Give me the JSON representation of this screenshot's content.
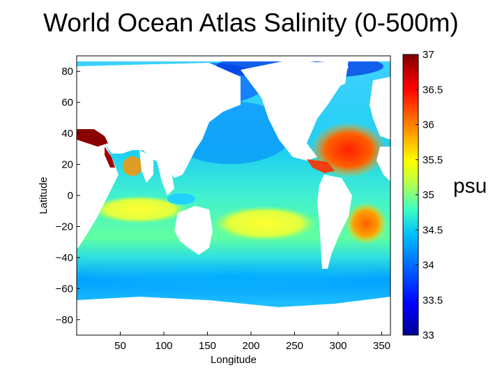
{
  "title": "World Ocean Atlas Salinity (0-500m)",
  "unit_label": "psu",
  "chart_data": {
    "type": "heatmap",
    "variable": "Salinity",
    "depth_range": "0-500m",
    "xlabel": "Longitude",
    "ylabel": "Latitude",
    "xlim": [
      0,
      360
    ],
    "ylim": [
      -90,
      90
    ],
    "x_ticks": [
      50,
      100,
      150,
      200,
      250,
      300,
      350
    ],
    "y_ticks": [
      80,
      60,
      40,
      20,
      0,
      -20,
      -40,
      -60,
      -80
    ],
    "y_tick_labels": [
      "80",
      "60",
      "40",
      "20",
      "0",
      "−20",
      "−40",
      "−60",
      "−80"
    ],
    "colorbar": {
      "min": 33,
      "max": 37,
      "ticks": [
        37,
        36.5,
        36,
        35.5,
        35,
        34.5,
        34,
        33.5,
        33
      ],
      "tick_labels": [
        "37",
        "36.5",
        "36",
        "35.5",
        "35",
        "34.5",
        "34",
        "33.5",
        "33"
      ],
      "colormap": [
        "#00008f",
        "#0000ff",
        "#0080ff",
        "#00ffff",
        "#80ff80",
        "#ffff00",
        "#ff8000",
        "#ff0000",
        "#800000"
      ]
    },
    "land_color": "#ffffff"
  }
}
